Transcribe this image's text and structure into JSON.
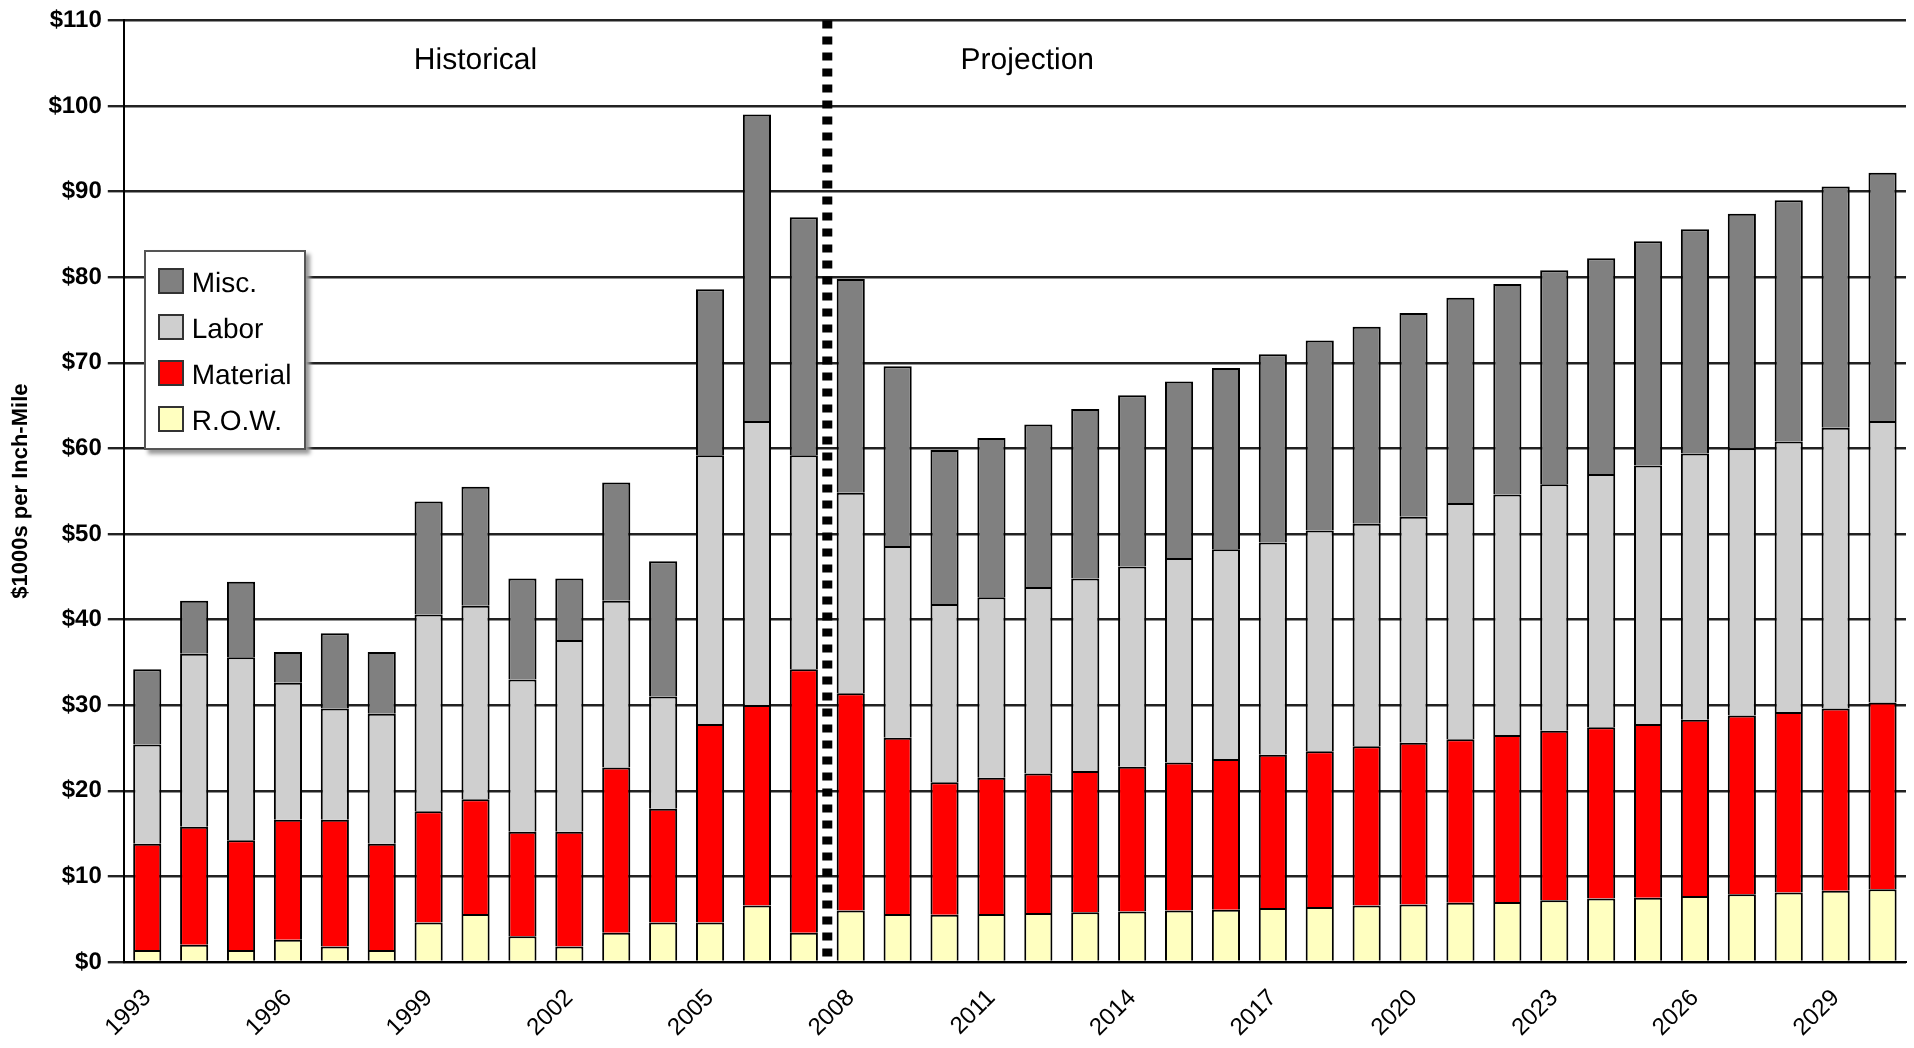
{
  "chart_data": {
    "type": "bar",
    "stacked": true,
    "ylabel": "$1000s per Inch-Mile",
    "x": [
      1993,
      1994,
      1995,
      1996,
      1997,
      1998,
      1999,
      2000,
      2001,
      2002,
      2003,
      2004,
      2005,
      2006,
      2007,
      2008,
      2009,
      2010,
      2011,
      2012,
      2013,
      2014,
      2015,
      2016,
      2017,
      2018,
      2019,
      2020,
      2021,
      2022,
      2023,
      2024,
      2025,
      2026,
      2027,
      2028,
      2029,
      2030
    ],
    "xlim": [
      1992.5,
      2030.5
    ],
    "xticks": [
      1993,
      1996,
      1999,
      2002,
      2005,
      2008,
      2011,
      2014,
      2017,
      2020,
      2023,
      2026,
      2029
    ],
    "ylim": [
      0,
      110
    ],
    "yticks": [
      {
        "value": 0,
        "label": "$0"
      },
      {
        "value": 10,
        "label": "$10"
      },
      {
        "value": 20,
        "label": "$20"
      },
      {
        "value": 30,
        "label": "$30"
      },
      {
        "value": 40,
        "label": "$40"
      },
      {
        "value": 50,
        "label": "$50"
      },
      {
        "value": 60,
        "label": "$60"
      },
      {
        "value": 70,
        "label": "$70"
      },
      {
        "value": 80,
        "label": "$80"
      },
      {
        "value": 90,
        "label": "$90"
      },
      {
        "value": 100,
        "label": "$100"
      },
      {
        "value": 110,
        "label": "$110"
      }
    ],
    "grid": "y",
    "legend": "left",
    "series": [
      {
        "name": "R.O.W.",
        "color": "#ffffc0",
        "values": [
          1.4,
          2,
          1.4,
          2.6,
          1.8,
          1.4,
          4.6,
          5.6,
          3,
          1.8,
          3.4,
          4.6,
          4.6,
          6.6,
          3.4,
          6,
          5.6,
          5.5,
          5.6,
          5.7,
          5.8,
          5.9,
          6,
          6.1,
          6.3,
          6.4,
          6.6,
          6.7,
          6.9,
          7,
          7.2,
          7.4,
          7.5,
          7.7,
          7.9,
          8.1,
          8.3,
          8.5
        ]
      },
      {
        "name": "Material",
        "color": "#ff0000",
        "values": [
          12.4,
          13.8,
          12.8,
          14,
          14.8,
          12.4,
          13,
          13.4,
          12.2,
          13.4,
          19.3,
          13.3,
          23.2,
          23.4,
          30.8,
          25.4,
          20.6,
          15.5,
          15.9,
          16.3,
          16.5,
          16.9,
          17.3,
          17.6,
          17.9,
          18.2,
          18.6,
          18.9,
          19.1,
          19.5,
          19.8,
          20,
          20.3,
          20.6,
          20.9,
          21.1,
          21.3,
          21.8
        ]
      },
      {
        "name": "Labor",
        "color": "#cfcfcf",
        "values": [
          11.6,
          20.2,
          21.4,
          16,
          13,
          15.2,
          23,
          22.6,
          17.8,
          22.4,
          19.5,
          13.1,
          31.4,
          33.2,
          25,
          23.4,
          22.4,
          20.8,
          21.1,
          21.8,
          22.5,
          23.4,
          23.9,
          24.5,
          24.8,
          25.8,
          26,
          26.4,
          27.6,
          28.1,
          28.8,
          29.6,
          30.2,
          31.1,
          31.2,
          31.6,
          32.8,
          32.9
        ]
      },
      {
        "name": "Misc.",
        "color": "#808080",
        "values": [
          8.8,
          6.2,
          8.8,
          3.6,
          8.8,
          7.2,
          13.2,
          13.9,
          11.8,
          7.2,
          13.8,
          15.8,
          19.4,
          35.8,
          27.8,
          25,
          21,
          18,
          18.6,
          19,
          19.8,
          20,
          20.6,
          21.2,
          22,
          22.2,
          23,
          23.8,
          24,
          24.6,
          25,
          25.2,
          26.2,
          26.2,
          27.4,
          28.2,
          28.2,
          29
        ]
      }
    ],
    "ref_lines": [
      {
        "axis": "x",
        "value": 2007.5,
        "color": "#000000",
        "line_style": "dotted"
      }
    ],
    "annotations": [
      "Historical",
      "Projection"
    ]
  }
}
